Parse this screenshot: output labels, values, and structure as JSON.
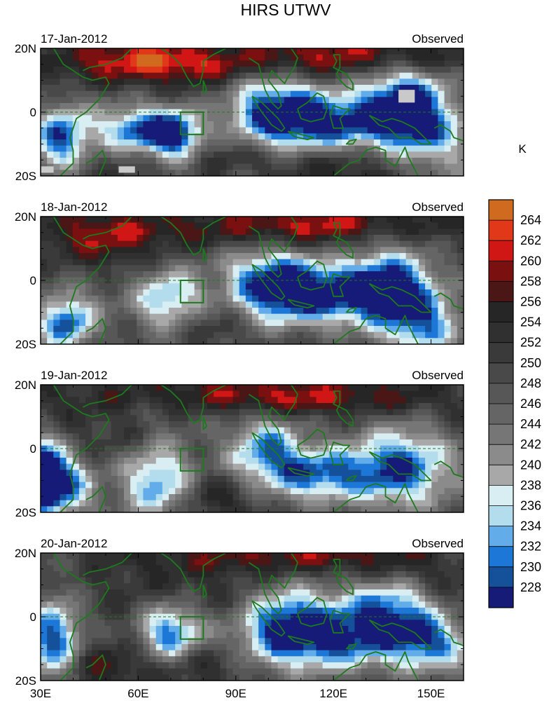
{
  "title": "HIRS UTWV",
  "colorbar": {
    "unit": "K",
    "levels": [
      "264",
      "262",
      "260",
      "258",
      "256",
      "254",
      "252",
      "250",
      "248",
      "246",
      "244",
      "242",
      "240",
      "238",
      "236",
      "234",
      "232",
      "230",
      "228"
    ],
    "colors": [
      "#cf6a1e",
      "#e03818",
      "#d11616",
      "#7a1010",
      "#4a1616",
      "#262626",
      "#303030",
      "#3a3a3a",
      "#494949",
      "#575757",
      "#656565",
      "#767676",
      "#8b8b8b",
      "#a8a8a8",
      "#d8eef2",
      "#b3dcec",
      "#62acea",
      "#1c77d6",
      "#14519a",
      "#161b78"
    ]
  },
  "map_colors": {
    "coast": "#1d7a1d",
    "equator": "#1d7a1d",
    "box": "#1d7a1d",
    "missing": "#c9c9c9"
  },
  "axes": {
    "lon_min": 30,
    "lon_max": 160,
    "lat_min": -20,
    "lat_max": 20,
    "x_ticks": [
      "30E",
      "60E",
      "90E",
      "120E",
      "150E"
    ],
    "x_tick_values": [
      30,
      60,
      90,
      120,
      150
    ],
    "y_ticks": [
      "20N",
      "0",
      "20S"
    ],
    "y_tick_values": [
      20,
      0,
      -20
    ]
  },
  "panels": [
    {
      "date": "17-Jan-2012",
      "label": "Observed"
    },
    {
      "date": "18-Jan-2012",
      "label": "Observed"
    },
    {
      "date": "19-Jan-2012",
      "label": "Observed"
    },
    {
      "date": "20-Jan-2012",
      "label": "Observed"
    }
  ]
}
